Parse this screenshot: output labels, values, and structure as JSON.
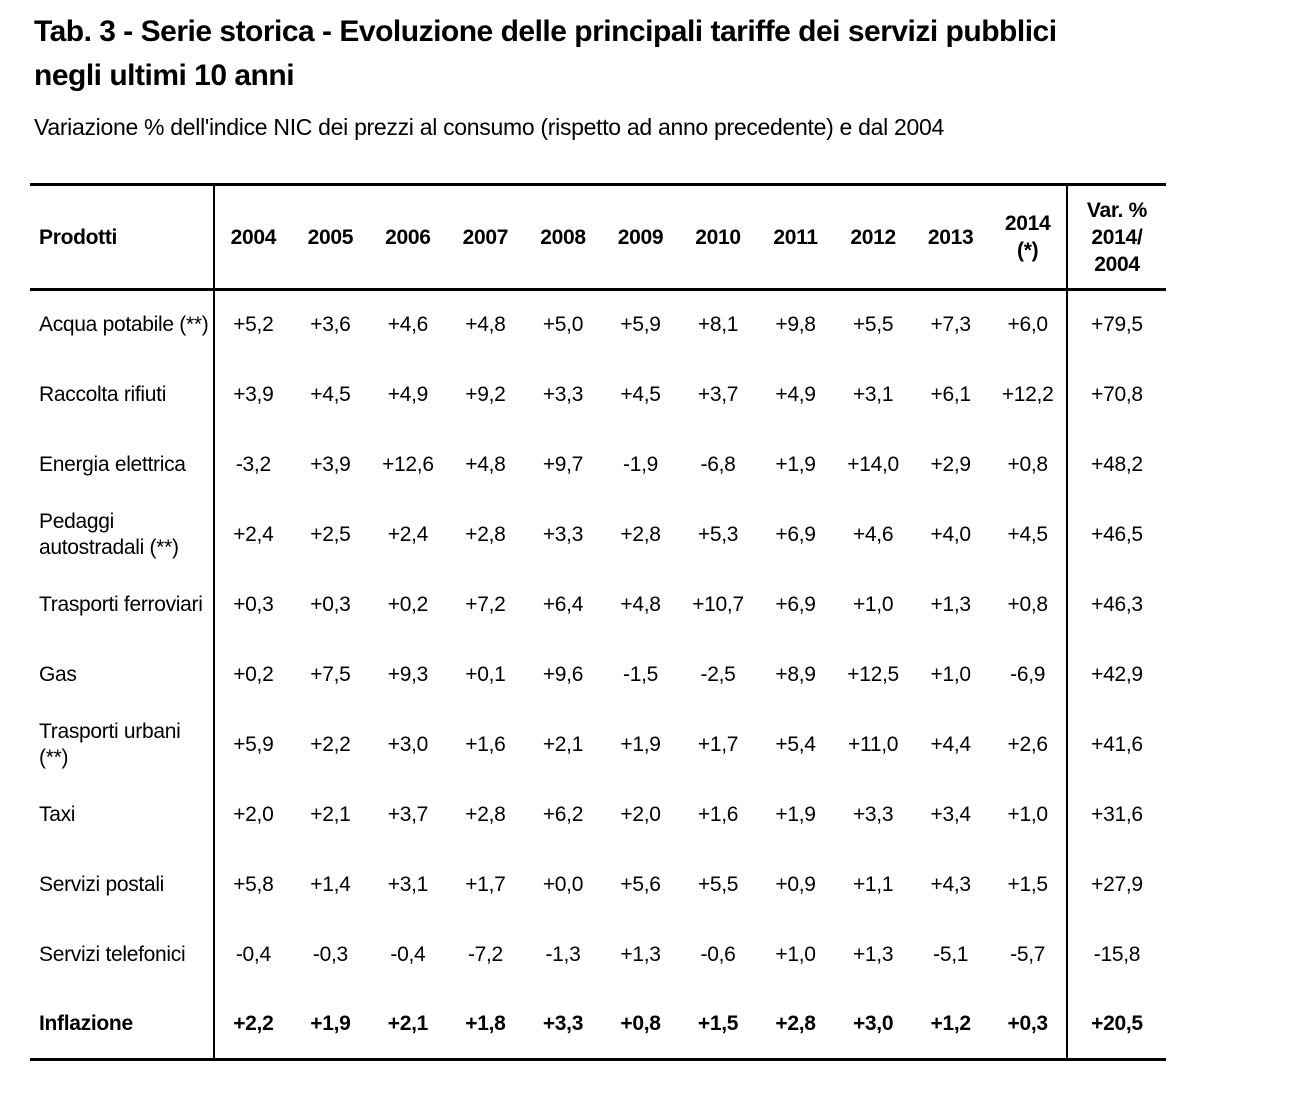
{
  "page": {
    "title": "Tab. 3 - Serie storica - Evoluzione delle principali tariffe dei servizi pubblici\nnegli ultimi 10 anni",
    "subtitle": "Variazione % dell'indice NIC dei prezzi al consumo (rispetto ad anno precedente) e dal 2004"
  },
  "colors": {
    "text": "#000000",
    "background": "#ffffff",
    "border": "#000000"
  },
  "chart_data": {
    "type": "table",
    "title": "Tab. 3 - Serie storica - Evoluzione delle principali tariffe dei servizi pubblici negli ultimi 10 anni",
    "subtitle": "Variazione % dell'indice NIC dei prezzi al consumo (rispetto ad anno precedente) e dal 2004",
    "header": {
      "product_col": "Prodotti",
      "years": [
        "2004",
        "2005",
        "2006",
        "2007",
        "2008",
        "2009",
        "2010",
        "2011",
        "2012",
        "2013",
        "2014\n(*)"
      ],
      "var_col": "Var. %\n2014/\n2004"
    },
    "rows": [
      {
        "label": "Acqua potabile (**)",
        "values": [
          "+5,2",
          "+3,6",
          "+4,6",
          "+4,8",
          "+5,0",
          "+5,9",
          "+8,1",
          "+9,8",
          "+5,5",
          "+7,3",
          "+6,0"
        ],
        "var": "+79,5",
        "bold": false
      },
      {
        "label": "Raccolta rifiuti",
        "values": [
          "+3,9",
          "+4,5",
          "+4,9",
          "+9,2",
          "+3,3",
          "+4,5",
          "+3,7",
          "+4,9",
          "+3,1",
          "+6,1",
          "+12,2"
        ],
        "var": "+70,8",
        "bold": false
      },
      {
        "label": "Energia elettrica",
        "values": [
          "-3,2",
          "+3,9",
          "+12,6",
          "+4,8",
          "+9,7",
          "-1,9",
          "-6,8",
          "+1,9",
          "+14,0",
          "+2,9",
          "+0,8"
        ],
        "var": "+48,2",
        "bold": false
      },
      {
        "label": "Pedaggi autostradali (**)",
        "values": [
          "+2,4",
          "+2,5",
          "+2,4",
          "+2,8",
          "+3,3",
          "+2,8",
          "+5,3",
          "+6,9",
          "+4,6",
          "+4,0",
          "+4,5"
        ],
        "var": "+46,5",
        "bold": false
      },
      {
        "label": "Trasporti ferroviari",
        "values": [
          "+0,3",
          "+0,3",
          "+0,2",
          "+7,2",
          "+6,4",
          "+4,8",
          "+10,7",
          "+6,9",
          "+1,0",
          "+1,3",
          "+0,8"
        ],
        "var": "+46,3",
        "bold": false
      },
      {
        "label": "Gas",
        "values": [
          "+0,2",
          "+7,5",
          "+9,3",
          "+0,1",
          "+9,6",
          "-1,5",
          "-2,5",
          "+8,9",
          "+12,5",
          "+1,0",
          "-6,9"
        ],
        "var": "+42,9",
        "bold": false
      },
      {
        "label": "Trasporti urbani (**)",
        "values": [
          "+5,9",
          "+2,2",
          "+3,0",
          "+1,6",
          "+2,1",
          "+1,9",
          "+1,7",
          "+5,4",
          "+11,0",
          "+4,4",
          "+2,6"
        ],
        "var": "+41,6",
        "bold": false
      },
      {
        "label": "Taxi",
        "values": [
          "+2,0",
          "+2,1",
          "+3,7",
          "+2,8",
          "+6,2",
          "+2,0",
          "+1,6",
          "+1,9",
          "+3,3",
          "+3,4",
          "+1,0"
        ],
        "var": "+31,6",
        "bold": false
      },
      {
        "label": "Servizi postali",
        "values": [
          "+5,8",
          "+1,4",
          "+3,1",
          "+1,7",
          "+0,0",
          "+5,6",
          "+5,5",
          "+0,9",
          "+1,1",
          "+4,3",
          "+1,5"
        ],
        "var": "+27,9",
        "bold": false
      },
      {
        "label": "Servizi telefonici",
        "values": [
          "-0,4",
          "-0,3",
          "-0,4",
          "-7,2",
          "-1,3",
          "+1,3",
          "-0,6",
          "+1,0",
          "+1,3",
          "-5,1",
          "-5,7"
        ],
        "var": "-15,8",
        "bold": false
      },
      {
        "label": "Inflazione",
        "values": [
          "+2,2",
          "+1,9",
          "+2,1",
          "+1,8",
          "+3,3",
          "+0,8",
          "+1,5",
          "+2,8",
          "+3,0",
          "+1,2",
          "+0,3"
        ],
        "var": "+20,5",
        "bold": true
      }
    ]
  }
}
